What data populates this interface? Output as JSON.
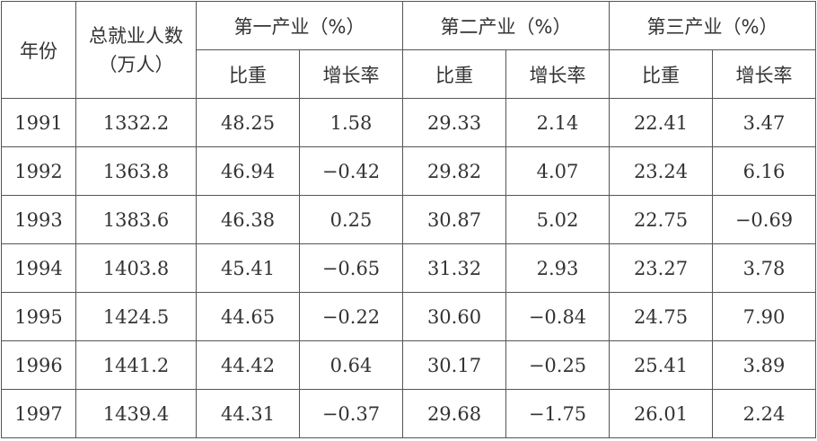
{
  "header": {
    "year": "年份",
    "employment_line1": "总就业人数",
    "employment_line2": "（万人）",
    "primary": "第一产业（%）",
    "secondary": "第二产业（%）",
    "tertiary": "第三产业（%）",
    "share": "比重",
    "growth": "增长率"
  },
  "rows": [
    {
      "year": "1991",
      "total": "1332.2",
      "p_share": "48.25",
      "p_growth": "1.58",
      "s_share": "29.33",
      "s_growth": "2.14",
      "t_share": "22.41",
      "t_growth": "3.47"
    },
    {
      "year": "1992",
      "total": "1363.8",
      "p_share": "46.94",
      "p_growth": "−0.42",
      "s_share": "29.82",
      "s_growth": "4.07",
      "t_share": "23.24",
      "t_growth": "6.16"
    },
    {
      "year": "1993",
      "total": "1383.6",
      "p_share": "46.38",
      "p_growth": "0.25",
      "s_share": "30.87",
      "s_growth": "5.02",
      "t_share": "22.75",
      "t_growth": "−0.69"
    },
    {
      "year": "1994",
      "total": "1403.8",
      "p_share": "45.41",
      "p_growth": "−0.65",
      "s_share": "31.32",
      "s_growth": "2.93",
      "t_share": "23.27",
      "t_growth": "3.78"
    },
    {
      "year": "1995",
      "total": "1424.5",
      "p_share": "44.65",
      "p_growth": "−0.22",
      "s_share": "30.60",
      "s_growth": "−0.84",
      "t_share": "24.75",
      "t_growth": "7.90"
    },
    {
      "year": "1996",
      "total": "1441.2",
      "p_share": "44.42",
      "p_growth": "0.64",
      "s_share": "30.17",
      "s_growth": "−0.25",
      "t_share": "25.41",
      "t_growth": "3.89"
    },
    {
      "year": "1997",
      "total": "1439.4",
      "p_share": "44.31",
      "p_growth": "−0.37",
      "s_share": "29.68",
      "s_growth": "−1.75",
      "t_share": "26.01",
      "t_growth": "2.24"
    }
  ]
}
